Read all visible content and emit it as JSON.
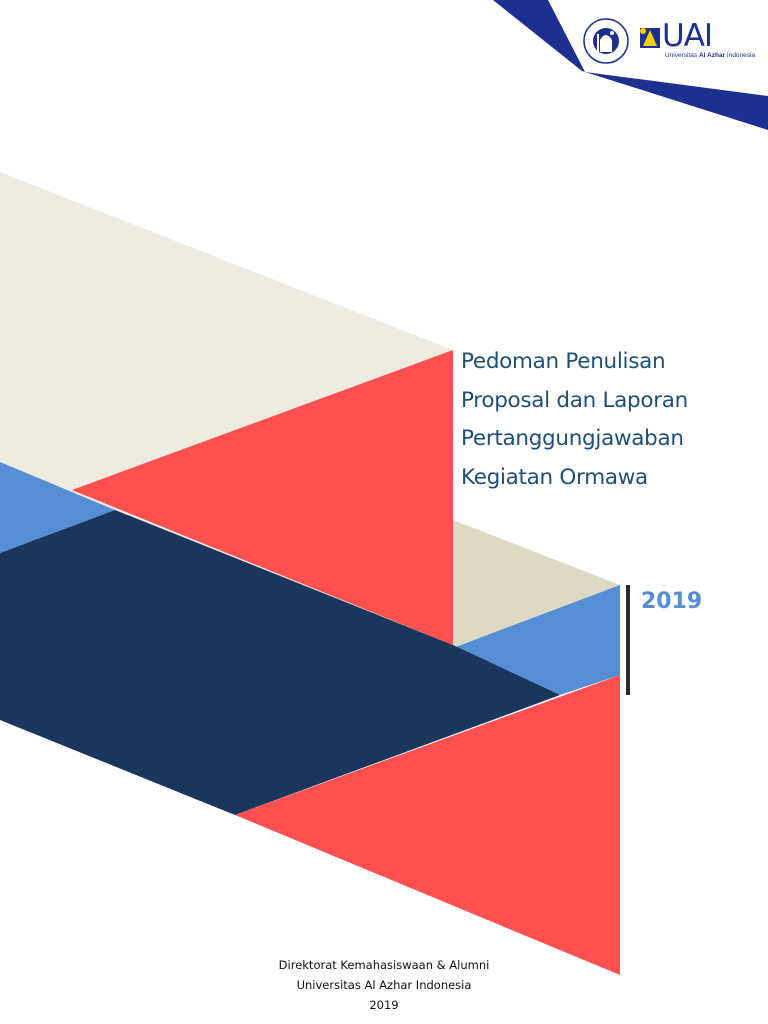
{
  "header": {
    "logos": {
      "seal_lettering": "YAYASAN PESANTREN ISLAM AL-AZHAR",
      "uai_wordmark": "UAI",
      "uai_tagline_prefix": "Universitas ",
      "uai_tagline_bold": "Al Azhar",
      "uai_tagline_suffix": " Indonesia"
    }
  },
  "cover": {
    "title_lines": [
      "Pedoman Penulisan",
      "Proposal dan Laporan",
      "Pertanggungjawaban",
      "Kegiatan Ormawa"
    ],
    "year": "2019"
  },
  "footer": {
    "lines": [
      "Direktorat Kemahasiswaan & Alumni",
      "Universitas Al Azhar Indonesia",
      "2019"
    ]
  },
  "colors": {
    "navy": "#1b365d",
    "red": "#fe5050",
    "light_blue": "#558ed5",
    "beige": "#eeece1",
    "beige_dark": "#ddd9c4",
    "title_blue": "#1f4e79",
    "logo_blue": "#1d2f8f"
  }
}
